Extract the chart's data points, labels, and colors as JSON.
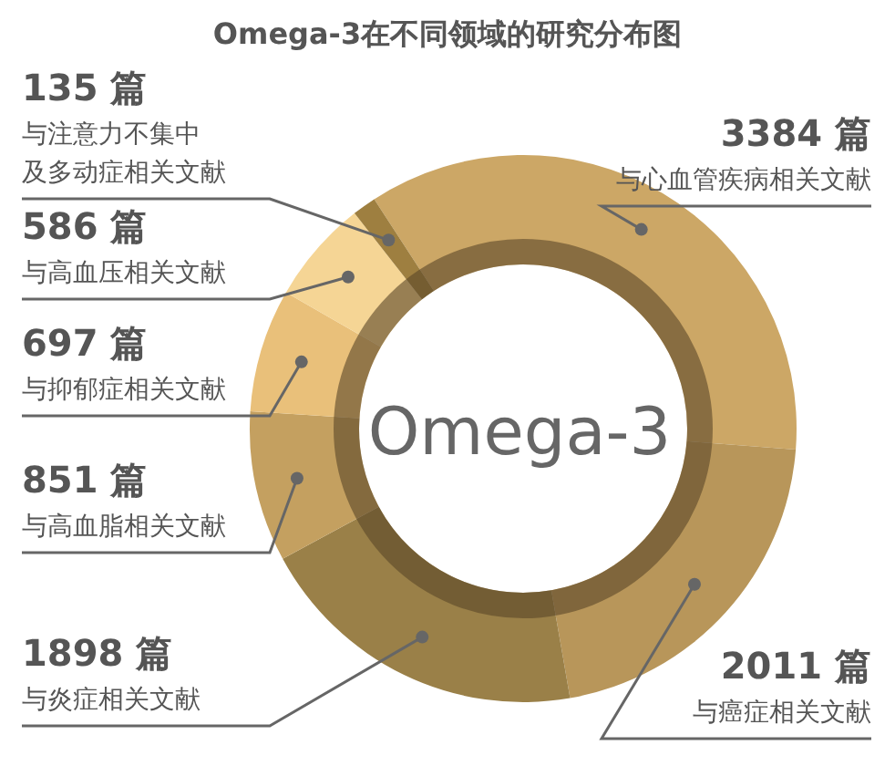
{
  "chart_data": {
    "type": "donut",
    "title": "Omega-3在不同领域的研究分布图",
    "categories": [
      "与心血管疾病相关文献",
      "与癌症相关文献",
      "与炎症相关文献",
      "与高血脂相关文献",
      "与抑郁症相关文献",
      "与高血压相关文献",
      "与注意力不集中及多动症相关文献"
    ],
    "values": [
      3384,
      2011,
      1898,
      851,
      697,
      586,
      135
    ],
    "value_labels": [
      "3384 篇",
      "2011 篇",
      "1898 篇",
      "851 篇",
      "697 篇",
      "586 篇",
      "135 篇"
    ],
    "colors": [
      "#cca766",
      "#b8965a",
      "#9a8048",
      "#c4a060",
      "#e9c07a",
      "#f5d595",
      "#9e7f40"
    ],
    "annotations": [
      "Omega-3"
    ]
  }
}
